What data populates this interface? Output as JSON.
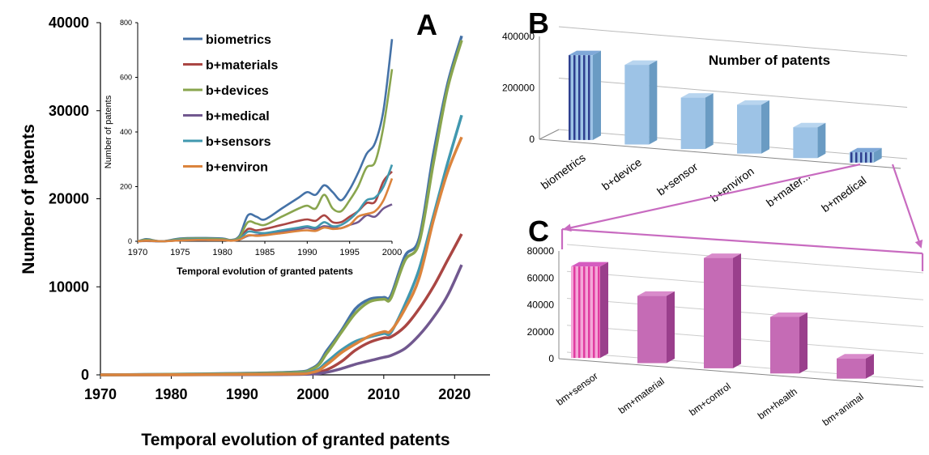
{
  "panels": {
    "a": "A",
    "b": "B",
    "c": "C"
  },
  "colors": {
    "biometrics": "#4572A7",
    "b+materials": "#AA4643",
    "b+devices": "#89A54E",
    "b+medical": "#71588F",
    "b+sensors": "#4198AF",
    "b+environ": "#DB843D",
    "bar_b": "#9DC3E6",
    "bar_b_side": "#6A9BC3",
    "bar_b_stripe": "#2E3F8F",
    "bar_c": "#C56BB5",
    "bar_c_side": "#9A3F8C",
    "bar_c_stripe": "#E03CA0",
    "connector": "#C86BC0"
  },
  "chart_data": [
    {
      "type": "line",
      "panel": "A",
      "title": "",
      "xlabel": "Temporal evolution of granted patents",
      "ylabel": "Number of patents",
      "xlim": [
        1970,
        2025
      ],
      "ylim": [
        0,
        40000
      ],
      "xticks": [
        "1970",
        "1980",
        "1990",
        "2000",
        "2010",
        "2020"
      ],
      "yticks": [
        "0",
        "10000",
        "20000",
        "30000",
        "40000"
      ],
      "x": [
        1970,
        1995,
        2000,
        2002,
        2004,
        2006,
        2008,
        2010,
        2011,
        2013,
        2015,
        2017,
        2019,
        2021
      ],
      "series": [
        {
          "name": "biometrics",
          "values": [
            0,
            250,
            800,
            2800,
            5000,
            7500,
            8600,
            8800,
            9000,
            13500,
            15500,
            25000,
            33000,
            38500
          ]
        },
        {
          "name": "b+materials",
          "values": [
            0,
            50,
            200,
            600,
            1500,
            2800,
            3700,
            4200,
            4300,
            5500,
            7500,
            10000,
            13000,
            16000
          ]
        },
        {
          "name": "b+devices",
          "values": [
            0,
            200,
            700,
            2500,
            4800,
            7000,
            8300,
            8600,
            8700,
            13000,
            15000,
            24000,
            32500,
            38000
          ]
        },
        {
          "name": "b+medical",
          "values": [
            0,
            30,
            100,
            300,
            700,
            1200,
            1600,
            2000,
            2200,
            3000,
            4500,
            6500,
            9000,
            12500
          ]
        },
        {
          "name": "b+sensors",
          "values": [
            0,
            100,
            400,
            1500,
            2800,
            3800,
            4300,
            4700,
            4800,
            8000,
            12000,
            18000,
            24000,
            29500
          ]
        },
        {
          "name": "b+environ",
          "values": [
            0,
            80,
            300,
            1200,
            2500,
            3500,
            4400,
            4900,
            5000,
            7500,
            11000,
            17500,
            23000,
            27000
          ]
        }
      ]
    },
    {
      "type": "line",
      "panel": "A-inset",
      "title": "",
      "xlabel": "Temporal evolution of granted patents",
      "ylabel": "Number of patents",
      "xlim": [
        1970,
        2000
      ],
      "ylim": [
        0,
        800
      ],
      "xticks": [
        "1970",
        "1975",
        "1980",
        "1985",
        "1990",
        "1995",
        "2000"
      ],
      "yticks": [
        "0",
        "200",
        "400",
        "600",
        "800"
      ],
      "x": [
        1970,
        1971,
        1972,
        1973,
        1975,
        1977,
        1980,
        1981,
        1982,
        1983,
        1984,
        1985,
        1987,
        1989,
        1990,
        1991,
        1992,
        1993,
        1994,
        1995,
        1996,
        1997,
        1998,
        1999,
        2000
      ],
      "series": [
        {
          "name": "biometrics",
          "values": [
            0,
            8,
            3,
            0,
            10,
            12,
            10,
            5,
            20,
            95,
            90,
            80,
            120,
            160,
            180,
            170,
            205,
            180,
            150,
            190,
            250,
            320,
            360,
            480,
            740
          ]
        },
        {
          "name": "b+materials",
          "values": [
            0,
            2,
            1,
            0,
            4,
            6,
            6,
            3,
            10,
            45,
            40,
            45,
            60,
            75,
            80,
            75,
            95,
            70,
            70,
            90,
            110,
            140,
            145,
            220,
            255
          ]
        },
        {
          "name": "b+devices",
          "values": [
            0,
            6,
            2,
            0,
            8,
            10,
            8,
            4,
            15,
            70,
            65,
            60,
            90,
            120,
            130,
            120,
            170,
            120,
            110,
            150,
            200,
            270,
            290,
            420,
            630
          ]
        },
        {
          "name": "b+medical",
          "values": [
            0,
            1,
            0,
            0,
            3,
            4,
            4,
            2,
            6,
            20,
            22,
            25,
            35,
            45,
            50,
            45,
            55,
            50,
            48,
            60,
            70,
            95,
            90,
            120,
            135
          ]
        },
        {
          "name": "b+sensors",
          "values": [
            0,
            3,
            1,
            0,
            5,
            7,
            5,
            3,
            8,
            35,
            32,
            30,
            40,
            50,
            55,
            50,
            70,
            55,
            60,
            80,
            110,
            150,
            160,
            200,
            280
          ]
        },
        {
          "name": "b+environ",
          "values": [
            0,
            2,
            1,
            0,
            3,
            5,
            4,
            2,
            6,
            22,
            20,
            22,
            30,
            38,
            40,
            38,
            50,
            45,
            48,
            60,
            90,
            100,
            110,
            150,
            230
          ]
        }
      ],
      "legend": "top-center"
    },
    {
      "type": "bar",
      "panel": "B",
      "title": "Number of patents",
      "ylim": [
        0,
        400000
      ],
      "yticks": [
        "0",
        "200000",
        "400000"
      ],
      "categories": [
        "biometrics",
        "b+device",
        "b+sensor",
        "b+environ",
        "b+mater...",
        "b+medical"
      ],
      "values": [
        330000,
        310000,
        200000,
        190000,
        120000,
        40000
      ],
      "highlight": [
        0,
        5
      ]
    },
    {
      "type": "bar",
      "panel": "C",
      "title": "",
      "ylim": [
        0,
        80000
      ],
      "yticks": [
        "0",
        "20000",
        "40000",
        "60000",
        "80000"
      ],
      "categories": [
        "bm+sensor",
        "bm+material",
        "bm+control",
        "bm+health",
        "bm+animal"
      ],
      "values": [
        68000,
        50000,
        82000,
        42000,
        15000
      ],
      "highlight": [
        0
      ]
    }
  ]
}
